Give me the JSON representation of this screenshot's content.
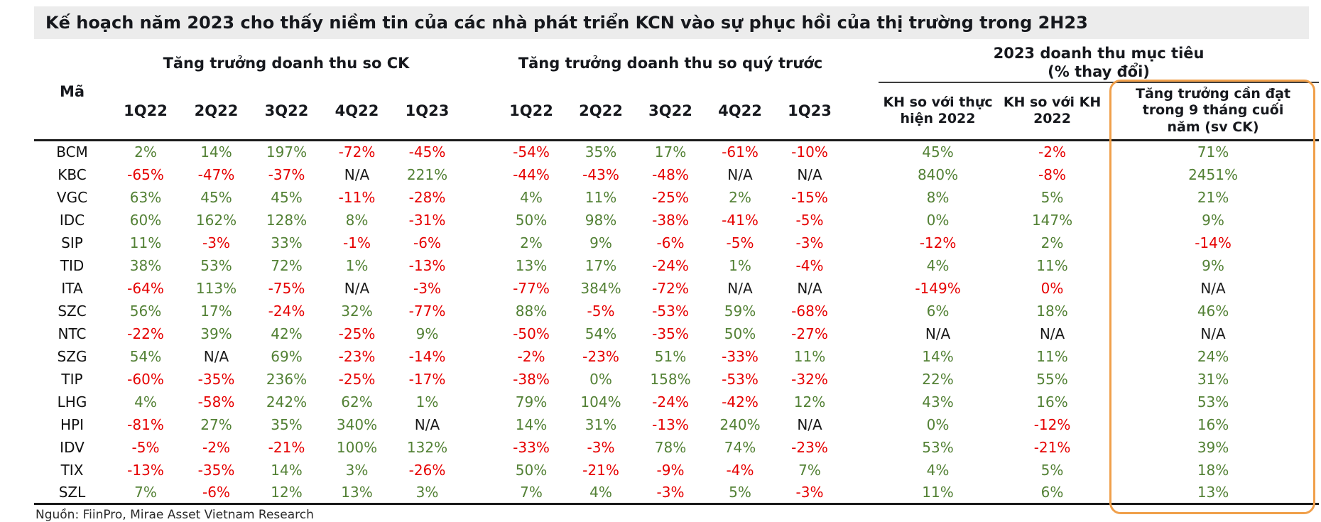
{
  "title": "Kế hoạch năm 2023 cho thấy niềm tin của các nhà phát triển KCN vào sự phục hồi của thị trường trong 2H23",
  "source_note": "Nguồn: FiinPro, Mirae Asset Vietnam Research",
  "colors": {
    "positive": "#538135",
    "negative": "#e60000",
    "neutral": "#1a1a1a",
    "highlight_border": "#f0a04b",
    "title_bg": "#ececec",
    "ink": "#16181d",
    "line": "#1a1a1a"
  },
  "table": {
    "ticker_header": "Mã",
    "groups": [
      {
        "label": "Tăng trưởng doanh thu so CK",
        "columns": [
          "1Q22",
          "2Q22",
          "3Q22",
          "4Q22",
          "1Q23"
        ]
      },
      {
        "label": "Tăng trưởng doanh thu so quý trước",
        "columns": [
          "1Q22",
          "2Q22",
          "3Q22",
          "4Q22",
          "1Q23"
        ]
      },
      {
        "label": "2023 doanh thu mục tiêu\n(% thay đổi)",
        "columns": [
          "KH so với thực hiện 2022",
          "KH so với KH 2022",
          "Tăng trưởng cần đạt trong 9 tháng cuối năm (sv CK)"
        ]
      }
    ],
    "rows": [
      {
        "ticker": "BCM",
        "cells": [
          [
            "2%",
            "g"
          ],
          [
            "14%",
            "g"
          ],
          [
            "197%",
            "g"
          ],
          [
            "-72%",
            "r"
          ],
          [
            "-45%",
            "r"
          ],
          [
            "-54%",
            "r"
          ],
          [
            "35%",
            "g"
          ],
          [
            "17%",
            "g"
          ],
          [
            "-61%",
            "r"
          ],
          [
            "-10%",
            "r"
          ],
          [
            "45%",
            "g"
          ],
          [
            "-2%",
            "r"
          ],
          [
            "71%",
            "g"
          ]
        ]
      },
      {
        "ticker": "KBC",
        "cells": [
          [
            "-65%",
            "r"
          ],
          [
            "-47%",
            "r"
          ],
          [
            "-37%",
            "r"
          ],
          [
            "N/A",
            "k"
          ],
          [
            "221%",
            "g"
          ],
          [
            "-44%",
            "r"
          ],
          [
            "-43%",
            "r"
          ],
          [
            "-48%",
            "r"
          ],
          [
            "N/A",
            "k"
          ],
          [
            "N/A",
            "k"
          ],
          [
            "840%",
            "g"
          ],
          [
            "-8%",
            "r"
          ],
          [
            "2451%",
            "g"
          ]
        ]
      },
      {
        "ticker": "VGC",
        "cells": [
          [
            "63%",
            "g"
          ],
          [
            "45%",
            "g"
          ],
          [
            "45%",
            "g"
          ],
          [
            "-11%",
            "r"
          ],
          [
            "-28%",
            "r"
          ],
          [
            "4%",
            "g"
          ],
          [
            "11%",
            "g"
          ],
          [
            "-25%",
            "r"
          ],
          [
            "2%",
            "g"
          ],
          [
            "-15%",
            "r"
          ],
          [
            "8%",
            "g"
          ],
          [
            "5%",
            "g"
          ],
          [
            "21%",
            "g"
          ]
        ]
      },
      {
        "ticker": "IDC",
        "cells": [
          [
            "60%",
            "g"
          ],
          [
            "162%",
            "g"
          ],
          [
            "128%",
            "g"
          ],
          [
            "8%",
            "g"
          ],
          [
            "-31%",
            "r"
          ],
          [
            "50%",
            "g"
          ],
          [
            "98%",
            "g"
          ],
          [
            "-38%",
            "r"
          ],
          [
            "-41%",
            "r"
          ],
          [
            "-5%",
            "r"
          ],
          [
            "0%",
            "g"
          ],
          [
            "147%",
            "g"
          ],
          [
            "9%",
            "g"
          ]
        ]
      },
      {
        "ticker": "SIP",
        "cells": [
          [
            "11%",
            "g"
          ],
          [
            "-3%",
            "r"
          ],
          [
            "33%",
            "g"
          ],
          [
            "-1%",
            "r"
          ],
          [
            "-6%",
            "r"
          ],
          [
            "2%",
            "g"
          ],
          [
            "9%",
            "g"
          ],
          [
            "-6%",
            "r"
          ],
          [
            "-5%",
            "r"
          ],
          [
            "-3%",
            "r"
          ],
          [
            "-12%",
            "r"
          ],
          [
            "2%",
            "g"
          ],
          [
            "-14%",
            "r"
          ]
        ]
      },
      {
        "ticker": "TID",
        "cells": [
          [
            "38%",
            "g"
          ],
          [
            "53%",
            "g"
          ],
          [
            "72%",
            "g"
          ],
          [
            "1%",
            "g"
          ],
          [
            "-13%",
            "r"
          ],
          [
            "13%",
            "g"
          ],
          [
            "17%",
            "g"
          ],
          [
            "-24%",
            "r"
          ],
          [
            "1%",
            "g"
          ],
          [
            "-4%",
            "r"
          ],
          [
            "4%",
            "g"
          ],
          [
            "11%",
            "g"
          ],
          [
            "9%",
            "g"
          ]
        ]
      },
      {
        "ticker": "ITA",
        "cells": [
          [
            "-64%",
            "r"
          ],
          [
            "113%",
            "g"
          ],
          [
            "-75%",
            "r"
          ],
          [
            "N/A",
            "k"
          ],
          [
            "-3%",
            "r"
          ],
          [
            "-77%",
            "r"
          ],
          [
            "384%",
            "g"
          ],
          [
            "-72%",
            "r"
          ],
          [
            "N/A",
            "k"
          ],
          [
            "N/A",
            "k"
          ],
          [
            "-149%",
            "r"
          ],
          [
            "0%",
            "r"
          ],
          [
            "N/A",
            "k"
          ]
        ]
      },
      {
        "ticker": "SZC",
        "cells": [
          [
            "56%",
            "g"
          ],
          [
            "17%",
            "g"
          ],
          [
            "-24%",
            "r"
          ],
          [
            "32%",
            "g"
          ],
          [
            "-77%",
            "r"
          ],
          [
            "88%",
            "g"
          ],
          [
            "-5%",
            "r"
          ],
          [
            "-53%",
            "r"
          ],
          [
            "59%",
            "g"
          ],
          [
            "-68%",
            "r"
          ],
          [
            "6%",
            "g"
          ],
          [
            "18%",
            "g"
          ],
          [
            "46%",
            "g"
          ]
        ]
      },
      {
        "ticker": "NTC",
        "cells": [
          [
            "-22%",
            "r"
          ],
          [
            "39%",
            "g"
          ],
          [
            "42%",
            "g"
          ],
          [
            "-25%",
            "r"
          ],
          [
            "9%",
            "g"
          ],
          [
            "-50%",
            "r"
          ],
          [
            "54%",
            "g"
          ],
          [
            "-35%",
            "r"
          ],
          [
            "50%",
            "g"
          ],
          [
            "-27%",
            "r"
          ],
          [
            "N/A",
            "k"
          ],
          [
            "N/A",
            "k"
          ],
          [
            "N/A",
            "k"
          ]
        ]
      },
      {
        "ticker": "SZG",
        "cells": [
          [
            "54%",
            "g"
          ],
          [
            "N/A",
            "k"
          ],
          [
            "69%",
            "g"
          ],
          [
            "-23%",
            "r"
          ],
          [
            "-14%",
            "r"
          ],
          [
            "-2%",
            "r"
          ],
          [
            "-23%",
            "r"
          ],
          [
            "51%",
            "g"
          ],
          [
            "-33%",
            "r"
          ],
          [
            "11%",
            "g"
          ],
          [
            "14%",
            "g"
          ],
          [
            "11%",
            "g"
          ],
          [
            "24%",
            "g"
          ]
        ]
      },
      {
        "ticker": "TIP",
        "cells": [
          [
            "-60%",
            "r"
          ],
          [
            "-35%",
            "r"
          ],
          [
            "236%",
            "g"
          ],
          [
            "-25%",
            "r"
          ],
          [
            "-17%",
            "r"
          ],
          [
            "-38%",
            "r"
          ],
          [
            "0%",
            "g"
          ],
          [
            "158%",
            "g"
          ],
          [
            "-53%",
            "r"
          ],
          [
            "-32%",
            "r"
          ],
          [
            "22%",
            "g"
          ],
          [
            "55%",
            "g"
          ],
          [
            "31%",
            "g"
          ]
        ]
      },
      {
        "ticker": "LHG",
        "cells": [
          [
            "4%",
            "g"
          ],
          [
            "-58%",
            "r"
          ],
          [
            "242%",
            "g"
          ],
          [
            "62%",
            "g"
          ],
          [
            "1%",
            "g"
          ],
          [
            "79%",
            "g"
          ],
          [
            "104%",
            "g"
          ],
          [
            "-24%",
            "r"
          ],
          [
            "-42%",
            "r"
          ],
          [
            "12%",
            "g"
          ],
          [
            "43%",
            "g"
          ],
          [
            "16%",
            "g"
          ],
          [
            "53%",
            "g"
          ]
        ]
      },
      {
        "ticker": "HPI",
        "cells": [
          [
            "-81%",
            "r"
          ],
          [
            "27%",
            "g"
          ],
          [
            "35%",
            "g"
          ],
          [
            "340%",
            "g"
          ],
          [
            "N/A",
            "k"
          ],
          [
            "14%",
            "g"
          ],
          [
            "31%",
            "g"
          ],
          [
            "-13%",
            "r"
          ],
          [
            "240%",
            "g"
          ],
          [
            "N/A",
            "k"
          ],
          [
            "0%",
            "g"
          ],
          [
            "-12%",
            "r"
          ],
          [
            "16%",
            "g"
          ]
        ]
      },
      {
        "ticker": "IDV",
        "cells": [
          [
            "-5%",
            "r"
          ],
          [
            "-2%",
            "r"
          ],
          [
            "-21%",
            "r"
          ],
          [
            "100%",
            "g"
          ],
          [
            "132%",
            "g"
          ],
          [
            "-33%",
            "r"
          ],
          [
            "-3%",
            "r"
          ],
          [
            "78%",
            "g"
          ],
          [
            "74%",
            "g"
          ],
          [
            "-23%",
            "r"
          ],
          [
            "53%",
            "g"
          ],
          [
            "-21%",
            "r"
          ],
          [
            "39%",
            "g"
          ]
        ]
      },
      {
        "ticker": "TIX",
        "cells": [
          [
            "-13%",
            "r"
          ],
          [
            "-35%",
            "r"
          ],
          [
            "14%",
            "g"
          ],
          [
            "3%",
            "g"
          ],
          [
            "-26%",
            "r"
          ],
          [
            "50%",
            "g"
          ],
          [
            "-21%",
            "r"
          ],
          [
            "-9%",
            "r"
          ],
          [
            "-4%",
            "r"
          ],
          [
            "7%",
            "g"
          ],
          [
            "4%",
            "g"
          ],
          [
            "5%",
            "g"
          ],
          [
            "18%",
            "g"
          ]
        ]
      },
      {
        "ticker": "SZL",
        "cells": [
          [
            "7%",
            "g"
          ],
          [
            "-6%",
            "r"
          ],
          [
            "12%",
            "g"
          ],
          [
            "13%",
            "g"
          ],
          [
            "3%",
            "g"
          ],
          [
            "7%",
            "g"
          ],
          [
            "4%",
            "g"
          ],
          [
            "-3%",
            "r"
          ],
          [
            "5%",
            "g"
          ],
          [
            "-3%",
            "r"
          ],
          [
            "11%",
            "g"
          ],
          [
            "6%",
            "g"
          ],
          [
            "13%",
            "g"
          ]
        ]
      }
    ]
  }
}
